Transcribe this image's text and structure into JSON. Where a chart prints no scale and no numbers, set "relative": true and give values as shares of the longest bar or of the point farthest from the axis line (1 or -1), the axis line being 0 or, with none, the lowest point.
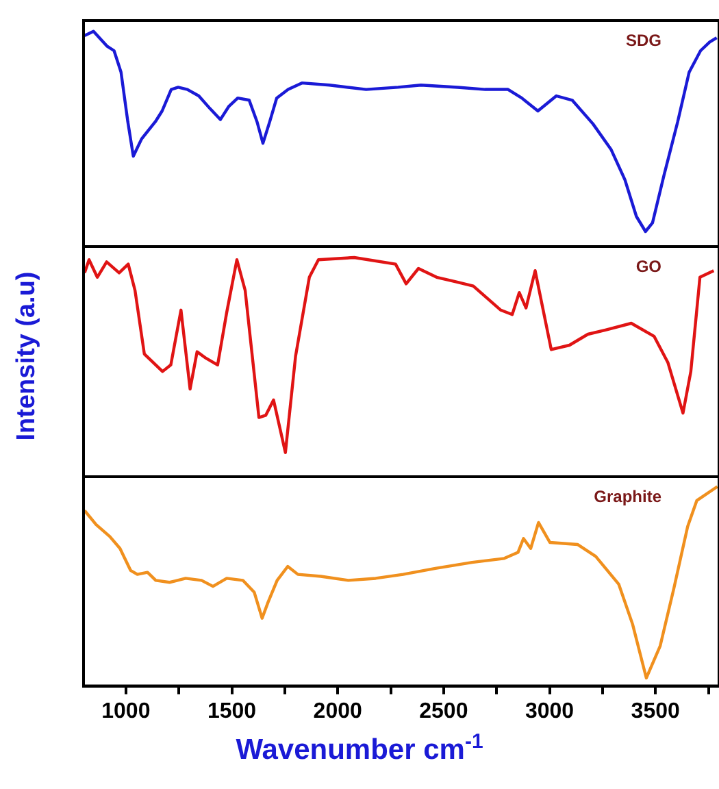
{
  "chart_data": [
    {
      "type": "line",
      "relative": true,
      "tick_labels": false,
      "xlim": [
        800,
        3800
      ],
      "marker": "none",
      "series": [
        {
          "name": "SDG",
          "color": "#1a1ad6",
          "x": [
            805,
            847,
            912,
            944,
            977,
            1009,
            1035,
            1074,
            1106,
            1139,
            1171,
            1214,
            1247,
            1290,
            1344,
            1398,
            1446,
            1485,
            1528,
            1582,
            1619,
            1647,
            1679,
            1712,
            1766,
            1831,
            1961,
            2134,
            2285,
            2393,
            2566,
            2696,
            2804,
            2869,
            2945,
            3032,
            3107,
            3205,
            3291,
            3356,
            3410,
            3453,
            3486,
            3540,
            3605,
            3659,
            3713,
            3756,
            3789
          ],
          "values": [
            0.98,
            1,
            0.93,
            0.91,
            0.81,
            0.58,
            0.42,
            0.5,
            0.54,
            0.58,
            0.63,
            0.73,
            0.74,
            0.73,
            0.7,
            0.64,
            0.59,
            0.65,
            0.69,
            0.68,
            0.58,
            0.48,
            0.58,
            0.69,
            0.73,
            0.76,
            0.75,
            0.73,
            0.74,
            0.75,
            0.74,
            0.73,
            0.73,
            0.69,
            0.63,
            0.7,
            0.68,
            0.57,
            0.45,
            0.31,
            0.14,
            0.07,
            0.11,
            0.33,
            0.58,
            0.81,
            0.91,
            0.95,
            0.97
          ]
        }
      ]
    },
    {
      "type": "line",
      "relative": true,
      "tick_labels": false,
      "xlim": [
        800,
        3800
      ],
      "marker": "none",
      "ylabel": "Intensity (a.u)",
      "series": [
        {
          "name": "GO",
          "color": "#e01414",
          "x": [
            805,
            826,
            865,
            909,
            968,
            1011,
            1043,
            1087,
            1130,
            1173,
            1212,
            1260,
            1303,
            1336,
            1379,
            1433,
            1476,
            1524,
            1563,
            1628,
            1660,
            1697,
            1753,
            1801,
            1866,
            1909,
            2078,
            2273,
            2323,
            2381,
            2467,
            2554,
            2640,
            2770,
            2824,
            2857,
            2889,
            2932,
            3008,
            3094,
            3181,
            3267,
            3386,
            3494,
            3559,
            3630,
            3667,
            3710,
            3775
          ],
          "values": [
            0.93,
            0.99,
            0.91,
            0.98,
            0.93,
            0.97,
            0.85,
            0.56,
            0.52,
            0.48,
            0.51,
            0.76,
            0.4,
            0.57,
            0.54,
            0.51,
            0.75,
            0.99,
            0.85,
            0.27,
            0.28,
            0.35,
            0.11,
            0.55,
            0.91,
            0.99,
            1,
            0.97,
            0.88,
            0.95,
            0.91,
            0.89,
            0.87,
            0.76,
            0.74,
            0.84,
            0.77,
            0.94,
            0.58,
            0.6,
            0.65,
            0.67,
            0.7,
            0.64,
            0.52,
            0.29,
            0.48,
            0.91,
            0.94
          ]
        }
      ]
    },
    {
      "type": "line",
      "relative": true,
      "tick_labels": "x",
      "xlim": [
        800,
        3800
      ],
      "marker": "none",
      "xlabel": "Wavenumber cm$^{-1}$",
      "xticks": [
        1000,
        {
          "value": 1250,
          "label": null
        },
        1500,
        {
          "value": 1750,
          "label": null
        },
        2000,
        {
          "value": 2250,
          "label": null
        },
        2500,
        {
          "value": 2750,
          "label": null
        },
        3000,
        {
          "value": 3250,
          "label": null
        },
        3500,
        {
          "value": 3750,
          "label": null
        }
      ],
      "series": [
        {
          "name": "Graphite",
          "color": "#f0901e",
          "x": [
            805,
            859,
            924,
            972,
            1022,
            1054,
            1102,
            1141,
            1206,
            1282,
            1357,
            1411,
            1476,
            1552,
            1606,
            1643,
            1671,
            1714,
            1764,
            1812,
            1920,
            2050,
            2179,
            2309,
            2461,
            2634,
            2786,
            2851,
            2877,
            2911,
            2948,
            3002,
            3132,
            3218,
            3327,
            3392,
            3457,
            3522,
            3587,
            3652,
            3695,
            3792
          ],
          "values": [
            0.88,
            0.81,
            0.75,
            0.69,
            0.58,
            0.56,
            0.57,
            0.53,
            0.52,
            0.54,
            0.53,
            0.5,
            0.54,
            0.53,
            0.47,
            0.34,
            0.42,
            0.53,
            0.6,
            0.56,
            0.55,
            0.53,
            0.54,
            0.56,
            0.59,
            0.62,
            0.64,
            0.67,
            0.74,
            0.69,
            0.82,
            0.72,
            0.71,
            0.65,
            0.51,
            0.31,
            0.04,
            0.2,
            0.49,
            0.8,
            0.93,
            1
          ]
        }
      ]
    }
  ]
}
